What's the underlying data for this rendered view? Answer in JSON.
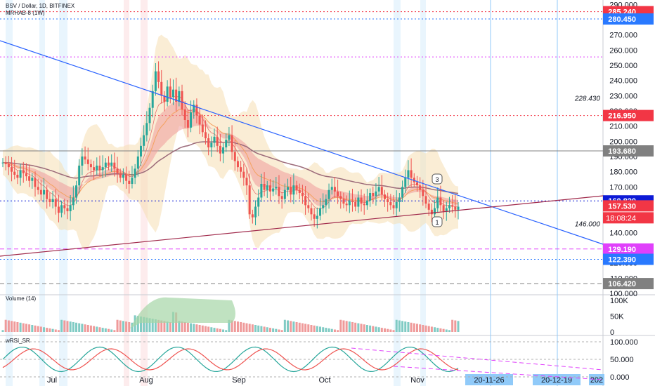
{
  "header": {
    "symbol_line": "BSV / Dollar, 1D, BITFINEX",
    "indicator_line": "MRHAB-8 (1W)"
  },
  "colors": {
    "up": "#26a69a",
    "down": "#ef5350",
    "trend_blue": "#2962ff",
    "support_maroon": "#a0294b",
    "red_level": "#f23645",
    "blue_level": "#2979ff",
    "magenta_level": "#e040fb",
    "gray_level": "#808080",
    "cloud": "#f5deb3"
  },
  "chart_data": [
    {
      "type": "line",
      "name": "price",
      "ylim": [
        100,
        292
      ],
      "price_ticks": [
        "100.000",
        "110.000",
        "120.000",
        "130.000",
        "140.000",
        "150.000",
        "160.000",
        "170.000",
        "180.000",
        "190.000",
        "200.000",
        "210.000",
        "220.000",
        "230.000",
        "240.000",
        "250.000",
        "260.000",
        "270.000",
        "280.000",
        "290.000"
      ],
      "x_labels": [
        "Jul",
        "Aug",
        "Sep",
        "Oct",
        "Nov"
      ],
      "date_badges": [
        "20-11-26",
        "20-12-19",
        "202"
      ],
      "levels": [
        {
          "value": 285.24,
          "label": "285.240",
          "color": "#f23645",
          "style": "dotted"
        },
        {
          "value": 280.45,
          "label": "280.450",
          "color": "#2979ff",
          "style": "dotted"
        },
        {
          "value": 255.5,
          "label": "",
          "color": "#e040fb",
          "style": "dotted"
        },
        {
          "value": 216.95,
          "label": "216.950",
          "color": "#f23645",
          "style": "dotted"
        },
        {
          "value": 193.68,
          "label": "193.680",
          "color": "#808080",
          "style": "solid"
        },
        {
          "value": 160.82,
          "label": "160.820",
          "color": "#0d1ad6",
          "style": "dotted"
        },
        {
          "value": 157.53,
          "label": "157.530",
          "color": "#f23645",
          "style": "none"
        },
        {
          "value": 129.19,
          "label": "129.190",
          "color": "#e040fb",
          "style": "dashed"
        },
        {
          "value": 122.39,
          "label": "122.390",
          "color": "#2979ff",
          "style": "dotted"
        },
        {
          "value": 106.42,
          "label": "106.420",
          "color": "#808080",
          "style": "dashed"
        }
      ],
      "countdown": "18:08:24",
      "annotations": [
        {
          "text": "228.430",
          "value": 228.43
        },
        {
          "text": "146.000",
          "value": 146.0
        }
      ],
      "markers": [
        "3",
        "1"
      ],
      "close_series": [
        186,
        185,
        183,
        180,
        178,
        176,
        181,
        179,
        177,
        174,
        176,
        170,
        168,
        165,
        168,
        162,
        160,
        162,
        157,
        153,
        158,
        156,
        154,
        158,
        163,
        171,
        184,
        190,
        188,
        185,
        183,
        181,
        184,
        181,
        183,
        186,
        184,
        186,
        182,
        179,
        176,
        178,
        174,
        172,
        176,
        182,
        190,
        197,
        204,
        212,
        222,
        233,
        246,
        239,
        230,
        226,
        236,
        229,
        234,
        226,
        233,
        221,
        214,
        209,
        219,
        224,
        217,
        211,
        206,
        202,
        196,
        199,
        203,
        197,
        192,
        196,
        201,
        204,
        193,
        187,
        183,
        180,
        176,
        171,
        152,
        150,
        157,
        163,
        172,
        168,
        171,
        167,
        169,
        170,
        164,
        162,
        168,
        170,
        165,
        171,
        168,
        166,
        164,
        158,
        156,
        152,
        149,
        151,
        156,
        158,
        162,
        168,
        170,
        167,
        164,
        162,
        159,
        158,
        161,
        160,
        157,
        163,
        159,
        158,
        161,
        166,
        164,
        167,
        170,
        165,
        162,
        160,
        158,
        156,
        160,
        163,
        170,
        176,
        181,
        176,
        173,
        171,
        168,
        164,
        159,
        155,
        152,
        156,
        163,
        158,
        154,
        156,
        158,
        157,
        155,
        157
      ]
    },
    {
      "type": "bar",
      "name": "Volume (14)",
      "ticks": [
        "100K",
        "50K",
        "0"
      ],
      "ylim": [
        0,
        100000
      ]
    },
    {
      "type": "line",
      "name": "wRSI_SR",
      "ticks": [
        "100.000",
        "50.000",
        "0.000"
      ],
      "ylim": [
        -10,
        110
      ]
    }
  ]
}
